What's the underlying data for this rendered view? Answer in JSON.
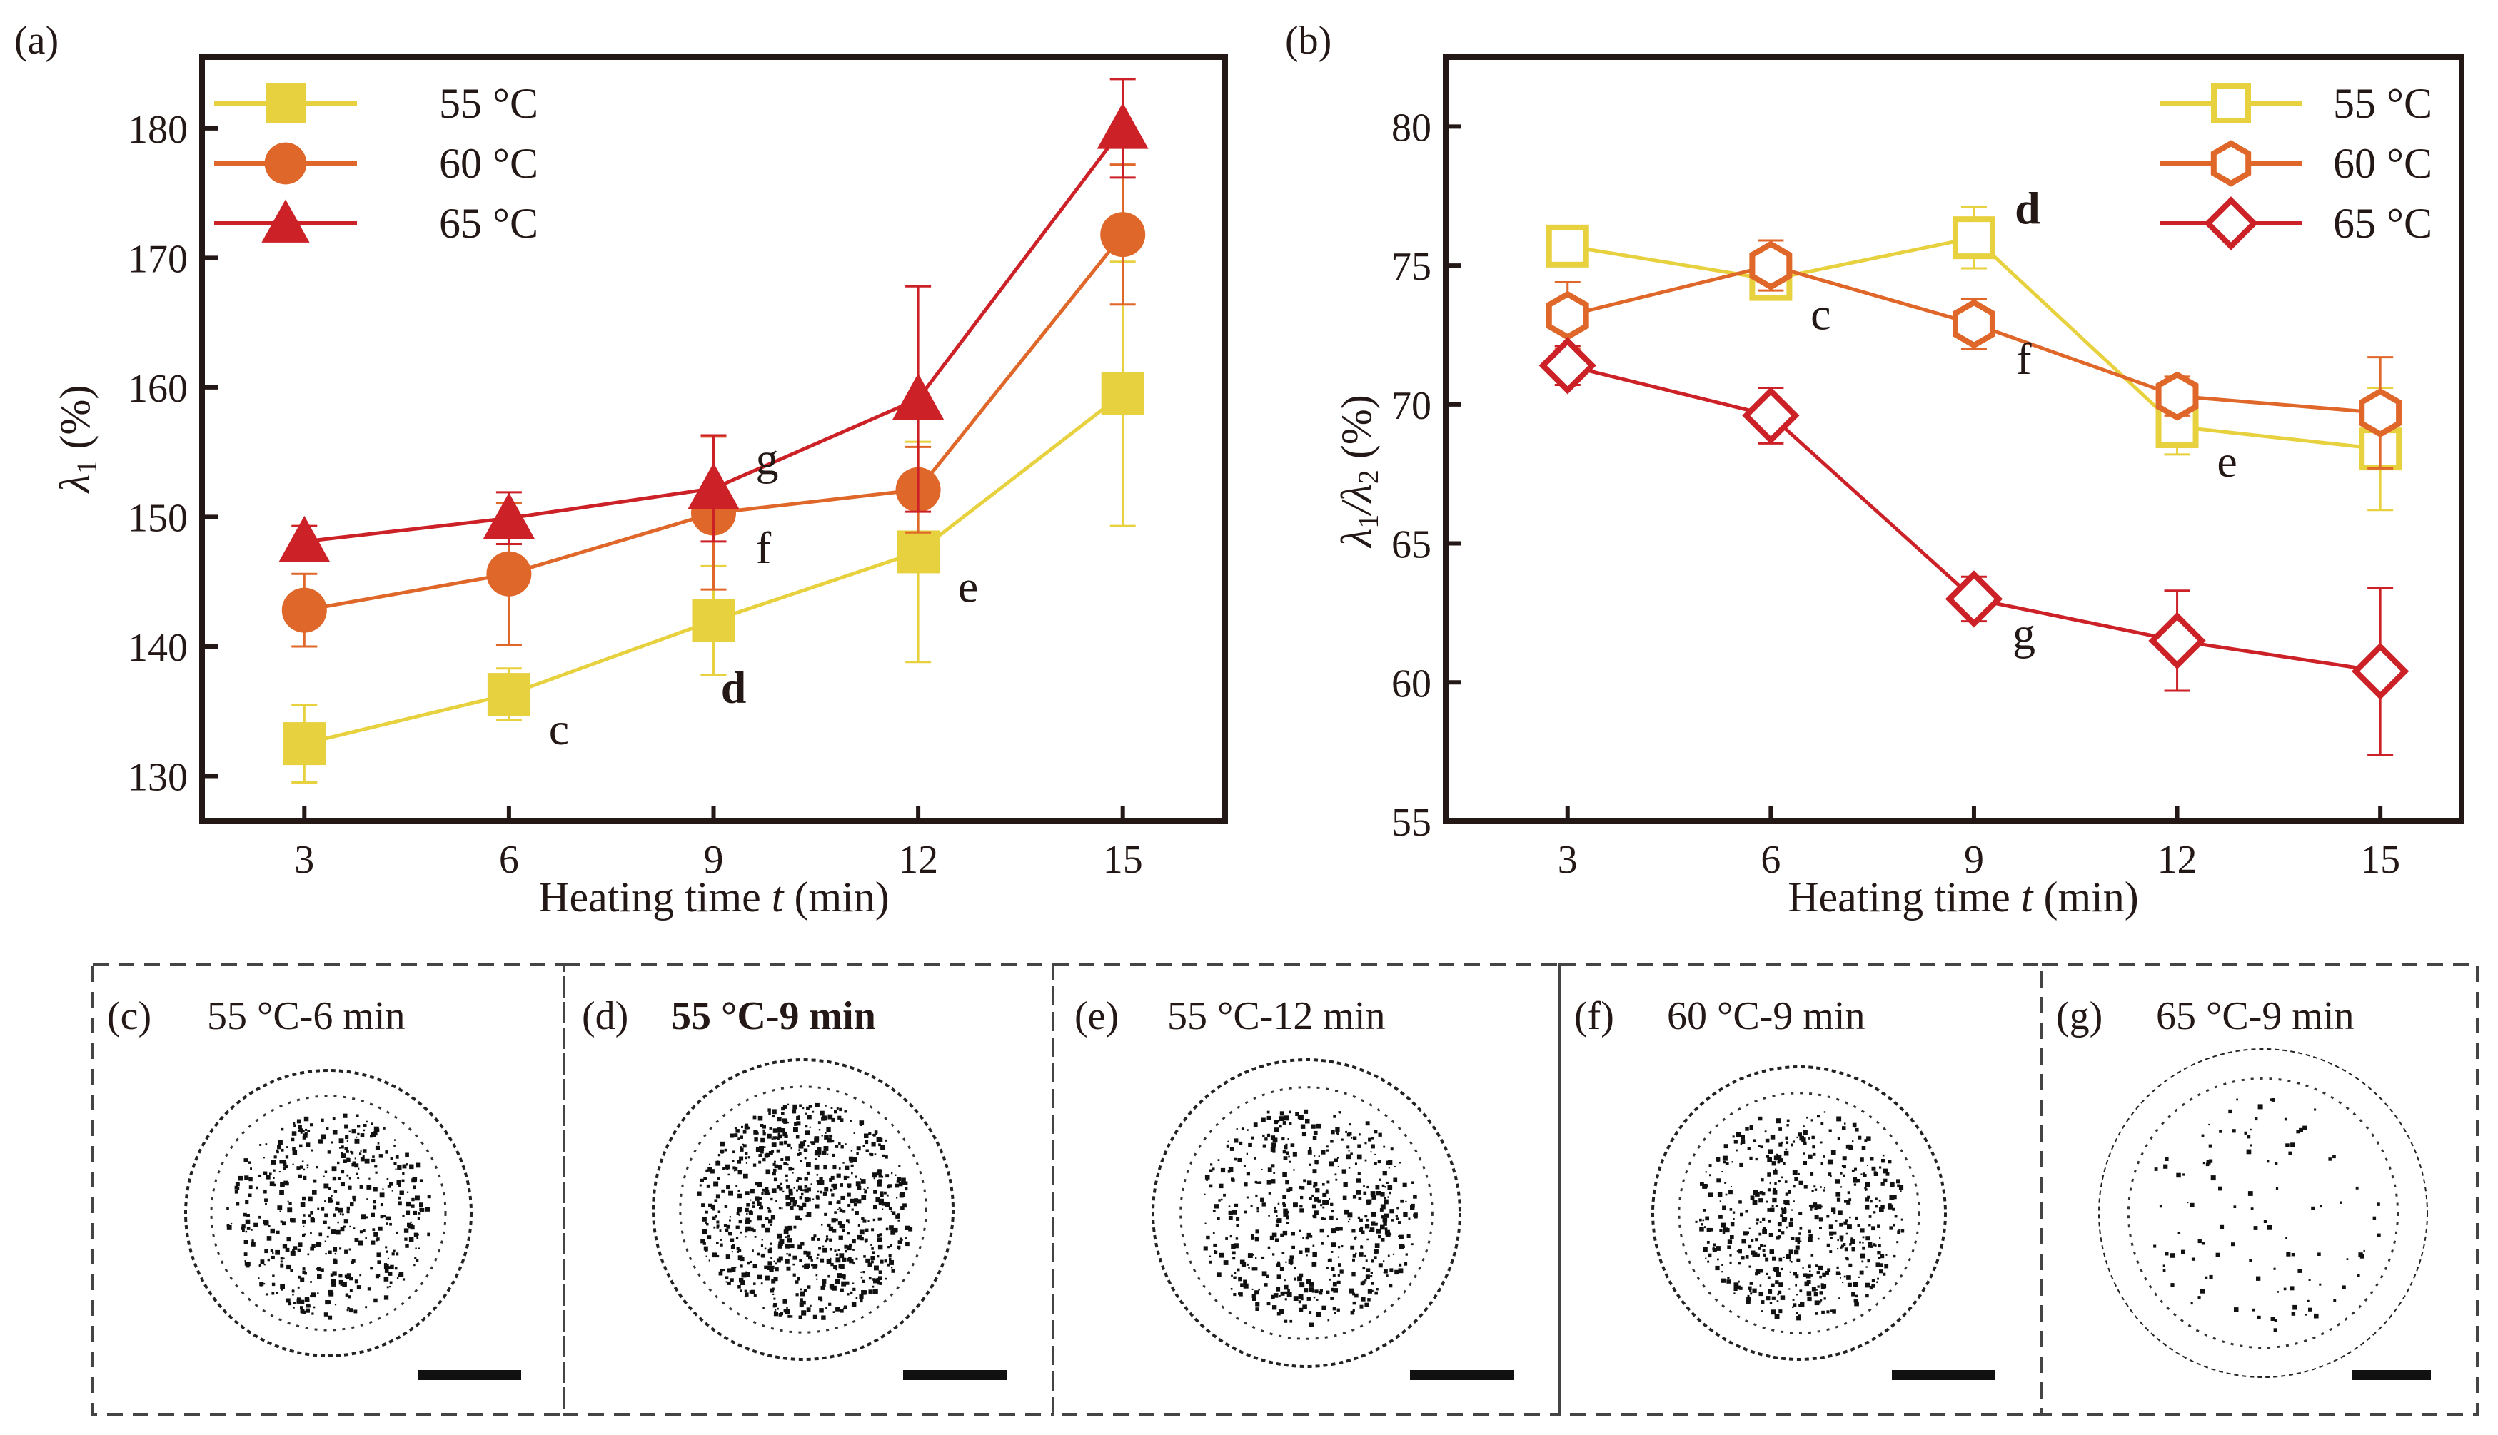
{
  "chart_data": [
    {
      "panel": "(a)",
      "type": "line",
      "xlabel_main": "Heating time ",
      "xlabel_var": "t",
      "xlabel_unit": " (min)",
      "ylabel_main": "λ",
      "ylabel_sub": "1",
      "ylabel_unit": " (%)",
      "x": [
        3,
        6,
        9,
        12,
        15
      ],
      "xlim": [
        1.5,
        16.5
      ],
      "ylim": [
        126.5,
        185.5
      ],
      "xticks": [
        3,
        6,
        9,
        12,
        15
      ],
      "yticks": [
        130,
        140,
        150,
        160,
        170,
        180
      ],
      "series": [
        {
          "name": "55 °C",
          "color": "#e8d13f",
          "marker": "square-filled",
          "values": [
            132.5,
            136.3,
            142.0,
            147.3,
            159.5
          ],
          "err": [
            3.0,
            2.0,
            4.2,
            8.5,
            10.2
          ]
        },
        {
          "name": "60 °C",
          "color": "#e0672a",
          "marker": "circle-filled",
          "values": [
            142.8,
            145.6,
            150.3,
            152.1,
            171.8
          ],
          "err": [
            2.8,
            5.5,
            5.9,
            3.3,
            5.4
          ]
        },
        {
          "name": "65 °C",
          "color": "#cc2127",
          "marker": "triangle-filled",
          "values": [
            148.1,
            149.9,
            152.2,
            159.1,
            180.0
          ],
          "err": [
            1.2,
            2.0,
            4.1,
            8.7,
            3.8
          ]
        }
      ],
      "point_labels": [
        {
          "text": "c",
          "x": 6,
          "y": 136.3,
          "bold": false,
          "pos": "below-right"
        },
        {
          "text": "d",
          "x": 9,
          "y": 142.0,
          "bold": true,
          "pos": "below"
        },
        {
          "text": "e",
          "x": 12,
          "y": 147.3,
          "bold": false,
          "pos": "below-right"
        },
        {
          "text": "f",
          "x": 9,
          "y": 150.3,
          "bold": false,
          "pos": "below-right"
        },
        {
          "text": "g",
          "x": 9,
          "y": 152.2,
          "bold": false,
          "pos": "above-right"
        }
      ],
      "legend_position": "top-left"
    },
    {
      "panel": "(b)",
      "type": "line",
      "xlabel_main": "Heating time ",
      "xlabel_var": "t",
      "xlabel_unit": " (min)",
      "ylabel_main": "λ",
      "ylabel_sub": "1",
      "ylabel_mid": "/λ",
      "ylabel_sub2": "2",
      "ylabel_unit": " (%)",
      "x": [
        3,
        6,
        9,
        12,
        15
      ],
      "xlim": [
        1.2,
        16.2
      ],
      "ylim": [
        55,
        82.5
      ],
      "xticks": [
        3,
        6,
        9,
        12,
        15
      ],
      "yticks": [
        55,
        60,
        65,
        70,
        75,
        80
      ],
      "series": [
        {
          "name": "55 °C",
          "color": "#e8d13f",
          "marker": "square-open",
          "values": [
            75.7,
            74.5,
            76.0,
            69.2,
            68.4
          ],
          "err": [
            0.6,
            0.5,
            1.1,
            1.0,
            2.2
          ]
        },
        {
          "name": "60 °C",
          "color": "#e0672a",
          "marker": "hexagon-open",
          "values": [
            73.2,
            75.0,
            72.9,
            70.3,
            69.7
          ],
          "err": [
            1.2,
            0.9,
            0.9,
            0.7,
            2.0
          ]
        },
        {
          "name": "65 °C",
          "color": "#cc2127",
          "marker": "diamond-open",
          "values": [
            71.4,
            69.6,
            63.0,
            61.5,
            60.4
          ],
          "err": [
            0.7,
            1.0,
            0.8,
            1.8,
            3.0
          ]
        }
      ],
      "point_labels": [
        {
          "text": "c",
          "x": 6,
          "y": 74.5,
          "bold": false,
          "pos": "below-right"
        },
        {
          "text": "d",
          "x": 9,
          "y": 76.0,
          "bold": true,
          "pos": "above-right"
        },
        {
          "text": "e",
          "x": 12,
          "y": 69.2,
          "bold": false,
          "pos": "below-right"
        },
        {
          "text": "f",
          "x": 9,
          "y": 72.9,
          "bold": false,
          "pos": "below-right"
        },
        {
          "text": "g",
          "x": 9,
          "y": 63.0,
          "bold": false,
          "pos": "below-right"
        }
      ],
      "legend_position": "top-right"
    }
  ],
  "image_panels": [
    {
      "label": "(c)",
      "title": "55 °C-6 min",
      "bold": false
    },
    {
      "label": "(d)",
      "title": "55 °C-9 min",
      "bold": true
    },
    {
      "label": "(e)",
      "title": "55 °C-12 min",
      "bold": false
    },
    {
      "label": "(f)",
      "title": "60 °C-9 min",
      "bold": false
    },
    {
      "label": "(g)",
      "title": "65 °C-9 min",
      "bold": false
    }
  ]
}
